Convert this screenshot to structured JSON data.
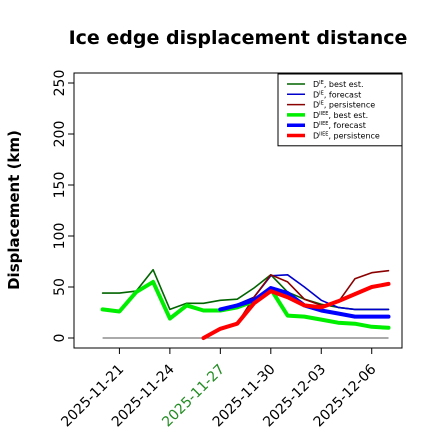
{
  "chart_data": {
    "type": "line",
    "title": "Ice edge displacement distance",
    "ylabel": "Displacement (km)",
    "xlabel": "",
    "ylim": [
      0,
      250
    ],
    "yticks": [
      0,
      50,
      100,
      150,
      200,
      250
    ],
    "xticks": [
      {
        "label": "2025-11-21",
        "x": 21,
        "color": "#000000"
      },
      {
        "label": "2025-11-24",
        "x": 24,
        "color": "#000000"
      },
      {
        "label": "2025-11-27",
        "x": 27,
        "color": "#228B22"
      },
      {
        "label": "2025-11-30",
        "x": 30,
        "color": "#000000"
      },
      {
        "label": "2025-12-03",
        "x": 33,
        "color": "#000000"
      },
      {
        "label": "2025-12-06",
        "x": 36,
        "color": "#000000"
      }
    ],
    "xlim": [
      18.3,
      37.8
    ],
    "zero_line": {
      "x": [
        20,
        37
      ],
      "y": [
        0,
        0
      ],
      "color": "#777777"
    },
    "legend_position": "top-right",
    "series": [
      {
        "name": "D^IE, best est.",
        "base": "D",
        "sup": "IE",
        "suffix": ", best est.",
        "color": "#006400",
        "width": 1.6,
        "x": [
          20,
          21,
          22,
          23,
          24,
          25,
          26,
          27,
          28,
          29,
          30,
          31,
          32,
          33,
          34,
          35,
          36,
          37
        ],
        "y": [
          44,
          44,
          46,
          67,
          28,
          34,
          34,
          37,
          38,
          49,
          62,
          45,
          38,
          33,
          30,
          28,
          28,
          28
        ]
      },
      {
        "name": "D^IE, forecast",
        "base": "D",
        "sup": "IE",
        "suffix": ", forecast",
        "color": "#0000CD",
        "width": 1.6,
        "x": [
          27,
          28,
          29,
          30,
          31,
          32,
          33,
          34,
          35,
          36,
          37
        ],
        "y": [
          28,
          33,
          40,
          61,
          62,
          50,
          37,
          30,
          28,
          28,
          28
        ]
      },
      {
        "name": "D^IE, persistence",
        "base": "D",
        "sup": "IE",
        "suffix": ", persistence",
        "color": "#8B0000",
        "width": 1.6,
        "x": [
          26,
          27,
          28,
          29,
          30,
          31,
          32,
          33,
          34,
          35,
          36,
          37
        ],
        "y": [
          0,
          10,
          14,
          40,
          62,
          55,
          38,
          32,
          35,
          58,
          64,
          66
        ]
      },
      {
        "name": "D^IIEE, best est.",
        "base": "D",
        "sup": "IIEE",
        "suffix": ", best est.",
        "color": "#00EE00",
        "width": 4,
        "x": [
          20,
          21,
          22,
          23,
          24,
          25,
          26,
          27,
          28,
          29,
          30,
          31,
          32,
          33,
          34,
          35,
          36,
          37
        ],
        "y": [
          28,
          26,
          45,
          55,
          19,
          32,
          27,
          27,
          30,
          36,
          48,
          22,
          21,
          18,
          15,
          14,
          11,
          10
        ]
      },
      {
        "name": "D^IIEE, forecast",
        "base": "D",
        "sup": "IIEE",
        "suffix": ", forecast",
        "color": "#0000FF",
        "width": 4,
        "x": [
          27,
          28,
          29,
          30,
          31,
          32,
          33,
          34,
          35,
          36,
          37
        ],
        "y": [
          28,
          32,
          37,
          49,
          44,
          32,
          27,
          24,
          21,
          21,
          21
        ]
      },
      {
        "name": "D^IIEE, persistence",
        "base": "D",
        "sup": "IIEE",
        "suffix": ", persistence",
        "color": "#FF0000",
        "width": 4,
        "x": [
          26,
          27,
          28,
          29,
          30,
          31,
          32,
          33,
          34,
          35,
          36,
          37
        ],
        "y": [
          0,
          9,
          14,
          34,
          46,
          40,
          32,
          30,
          36,
          43,
          50,
          53
        ]
      }
    ]
  }
}
